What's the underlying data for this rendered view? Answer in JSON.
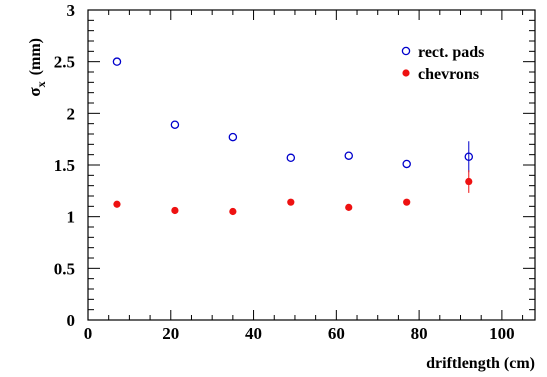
{
  "chart_data": {
    "type": "scatter",
    "title": "",
    "xlabel": "driftlength (cm)",
    "ylabel": {
      "main": "σ",
      "sub": "x",
      "unit": "(mm)"
    },
    "xlim": [
      0,
      108
    ],
    "ylim": [
      0,
      3
    ],
    "x_ticks": [
      "0",
      "20",
      "40",
      "60",
      "80",
      "100"
    ],
    "y_ticks": [
      "0",
      "0.5",
      "1",
      "1.5",
      "2",
      "2.5",
      "3"
    ],
    "grid": false,
    "legend_position": "top-right",
    "series": [
      {
        "name": "rect. pads",
        "marker": "open-circle",
        "color": "#0000cc",
        "points": [
          {
            "x": 7,
            "y": 2.5
          },
          {
            "x": 21,
            "y": 1.89
          },
          {
            "x": 35,
            "y": 1.77
          },
          {
            "x": 49,
            "y": 1.57
          },
          {
            "x": 63,
            "y": 1.59
          },
          {
            "x": 77,
            "y": 1.51
          },
          {
            "x": 92,
            "y": 1.58,
            "err": 0.15
          }
        ]
      },
      {
        "name": "chevrons",
        "marker": "filled-circle",
        "color": "#ee1111",
        "points": [
          {
            "x": 7,
            "y": 1.12
          },
          {
            "x": 21,
            "y": 1.06
          },
          {
            "x": 35,
            "y": 1.05
          },
          {
            "x": 49,
            "y": 1.14
          },
          {
            "x": 63,
            "y": 1.09
          },
          {
            "x": 77,
            "y": 1.14
          },
          {
            "x": 92,
            "y": 1.34,
            "err": 0.11
          }
        ]
      }
    ]
  }
}
